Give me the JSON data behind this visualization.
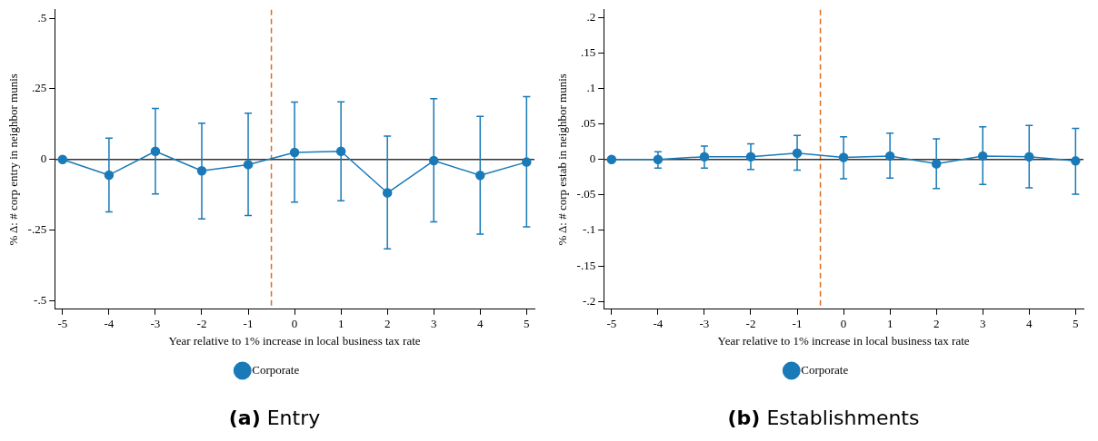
{
  "chart_data": [
    {
      "type": "line",
      "title": "(a) Entry",
      "xlabel": "Year relative to 1% increase in local business tax rate",
      "ylabel": "% Δ: # corp entry in neighbor munis",
      "x": [
        -5,
        -4,
        -3,
        -2,
        -1,
        0,
        1,
        2,
        3,
        4,
        5
      ],
      "series": [
        {
          "name": "Corporate",
          "color": "#1a7ab8",
          "values": [
            0,
            -0.055,
            0.029,
            -0.04,
            -0.018,
            0.025,
            0.029,
            -0.118,
            -0.004,
            -0.056,
            -0.009
          ],
          "errors": [
            null,
            [
              -0.185,
              0.076
            ],
            [
              -0.122,
              0.181
            ],
            [
              -0.21,
              0.129
            ],
            [
              -0.198,
              0.164
            ],
            [
              -0.151,
              0.203
            ],
            [
              -0.146,
              0.204
            ],
            [
              -0.316,
              0.083
            ],
            [
              -0.221,
              0.215
            ],
            [
              -0.264,
              0.153
            ],
            [
              -0.238,
              0.223
            ]
          ]
        }
      ],
      "xlim": [
        -5.17,
        5.17
      ],
      "xticks": [
        -5,
        -4,
        -3,
        -2,
        -1,
        0,
        1,
        2,
        3,
        4,
        5
      ],
      "ylim": [
        -0.53,
        0.53
      ],
      "yticks": [
        {
          "value": -0.5,
          "label": "-.5"
        },
        {
          "value": -0.25,
          "label": "-.25"
        },
        0,
        {
          "value": 0.25,
          "label": ".25"
        },
        {
          "value": 0.5,
          "label": ".5"
        }
      ],
      "ref_lines": [
        {
          "axis": "x",
          "value": -0.5,
          "color": "#e06c1c",
          "line_style": "dashed"
        },
        {
          "axis": "y",
          "value": 0,
          "color": "#333333",
          "line_style": "solid"
        }
      ],
      "marker": "circle",
      "line_style": "solid",
      "legend": "bottom",
      "grid": false
    },
    {
      "type": "line",
      "title": "(b) Establishments",
      "xlabel": "Year relative to 1% increase in local business tax rate",
      "ylabel": "% Δ: # corp estab in neighbor munis",
      "x": [
        -5,
        -4,
        -3,
        -2,
        -1,
        0,
        1,
        2,
        3,
        4,
        5
      ],
      "series": [
        {
          "name": "Corporate",
          "color": "#1a7ab8",
          "values": [
            0,
            0,
            0.004,
            0.004,
            0.009,
            0.003,
            0.005,
            -0.006,
            0.005,
            0.004,
            -0.002
          ],
          "errors": [
            null,
            [
              -0.012,
              0.011
            ],
            [
              -0.012,
              0.019
            ],
            [
              -0.014,
              0.022
            ],
            [
              -0.015,
              0.034
            ],
            [
              -0.027,
              0.032
            ],
            [
              -0.026,
              0.037
            ],
            [
              -0.041,
              0.029
            ],
            [
              -0.035,
              0.046
            ],
            [
              -0.04,
              0.048
            ],
            [
              -0.049,
              0.044
            ]
          ]
        }
      ],
      "xlim": [
        -5.17,
        5.17
      ],
      "xticks": [
        -5,
        -4,
        -3,
        -2,
        -1,
        0,
        1,
        2,
        3,
        4,
        5
      ],
      "ylim": [
        -0.211,
        0.211
      ],
      "yticks": [
        {
          "value": -0.2,
          "label": "-.2"
        },
        {
          "value": -0.15,
          "label": "-.15"
        },
        {
          "value": -0.1,
          "label": "-.1"
        },
        {
          "value": -0.05,
          "label": "-.05"
        },
        0,
        {
          "value": 0.05,
          "label": ".05"
        },
        {
          "value": 0.1,
          "label": ".1"
        },
        {
          "value": 0.15,
          "label": ".15"
        },
        {
          "value": 0.2,
          "label": ".2"
        }
      ],
      "ref_lines": [
        {
          "axis": "x",
          "value": -0.5,
          "color": "#e06c1c",
          "line_style": "dashed"
        },
        {
          "axis": "y",
          "value": 0,
          "color": "#333333",
          "line_style": "solid"
        }
      ],
      "marker": "circle",
      "line_style": "solid",
      "legend": "bottom",
      "grid": false
    }
  ]
}
